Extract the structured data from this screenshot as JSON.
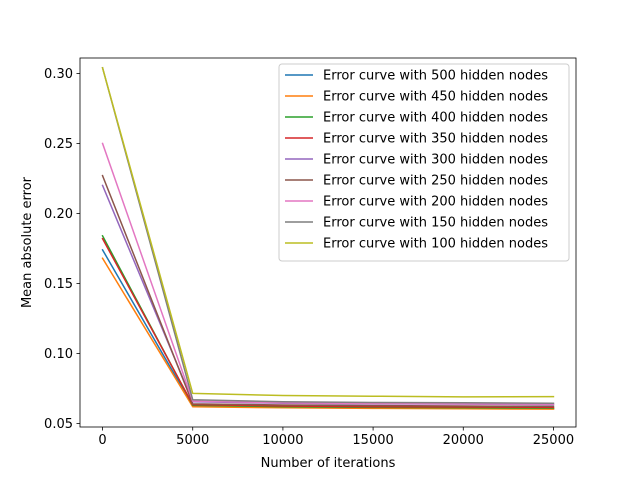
{
  "chart_data": {
    "type": "line",
    "title": "",
    "xlabel": "Number of iterations",
    "ylabel": "Mean absolute error",
    "x": [
      0,
      5000,
      10000,
      15000,
      20000,
      25000
    ],
    "xlim": [
      -1250,
      26250
    ],
    "ylim": [
      0.0475,
      0.311
    ],
    "xticks": [
      0,
      5000,
      10000,
      15000,
      20000,
      25000
    ],
    "xtick_labels": [
      "0",
      "5000",
      "10000",
      "15000",
      "20000",
      "25000"
    ],
    "yticks": [
      0.05,
      0.1,
      0.15,
      0.2,
      0.25,
      0.3
    ],
    "ytick_labels": [
      "0.05",
      "0.10",
      "0.15",
      "0.20",
      "0.25",
      "0.30"
    ],
    "grid": false,
    "legend_position": "top-right",
    "series": [
      {
        "name": "Error curve with 500 hidden nodes",
        "color": "#1f77b4",
        "values": [
          0.174,
          0.0625,
          0.0615,
          0.061,
          0.0608,
          0.0605
        ]
      },
      {
        "name": "Error curve with 450 hidden nodes",
        "color": "#ff7f0e",
        "values": [
          0.168,
          0.062,
          0.0612,
          0.0608,
          0.0605,
          0.0603
        ]
      },
      {
        "name": "Error curve with 400 hidden nodes",
        "color": "#2ca02c",
        "values": [
          0.184,
          0.063,
          0.062,
          0.0615,
          0.0612,
          0.061
        ]
      },
      {
        "name": "Error curve with 350 hidden nodes",
        "color": "#d62728",
        "values": [
          0.182,
          0.0635,
          0.0625,
          0.062,
          0.0618,
          0.0615
        ]
      },
      {
        "name": "Error curve with 300 hidden nodes",
        "color": "#9467bd",
        "values": [
          0.22,
          0.0655,
          0.0645,
          0.064,
          0.0638,
          0.0635
        ]
      },
      {
        "name": "Error curve with 250 hidden nodes",
        "color": "#8c564b",
        "values": [
          0.227,
          0.064,
          0.0632,
          0.0628,
          0.0625,
          0.0622
        ]
      },
      {
        "name": "Error curve with 200 hidden nodes",
        "color": "#e377c2",
        "values": [
          0.25,
          0.066,
          0.0648,
          0.0643,
          0.064,
          0.0638
        ]
      },
      {
        "name": "Error curve with 150 hidden nodes",
        "color": "#7f7f7f",
        "values": [
          0.304,
          0.067,
          0.0655,
          0.065,
          0.0648,
          0.0645
        ]
      },
      {
        "name": "Error curve with 100 hidden nodes",
        "color": "#bcbd22",
        "values": [
          0.304,
          0.0715,
          0.07,
          0.0695,
          0.069,
          0.0692
        ]
      }
    ]
  }
}
